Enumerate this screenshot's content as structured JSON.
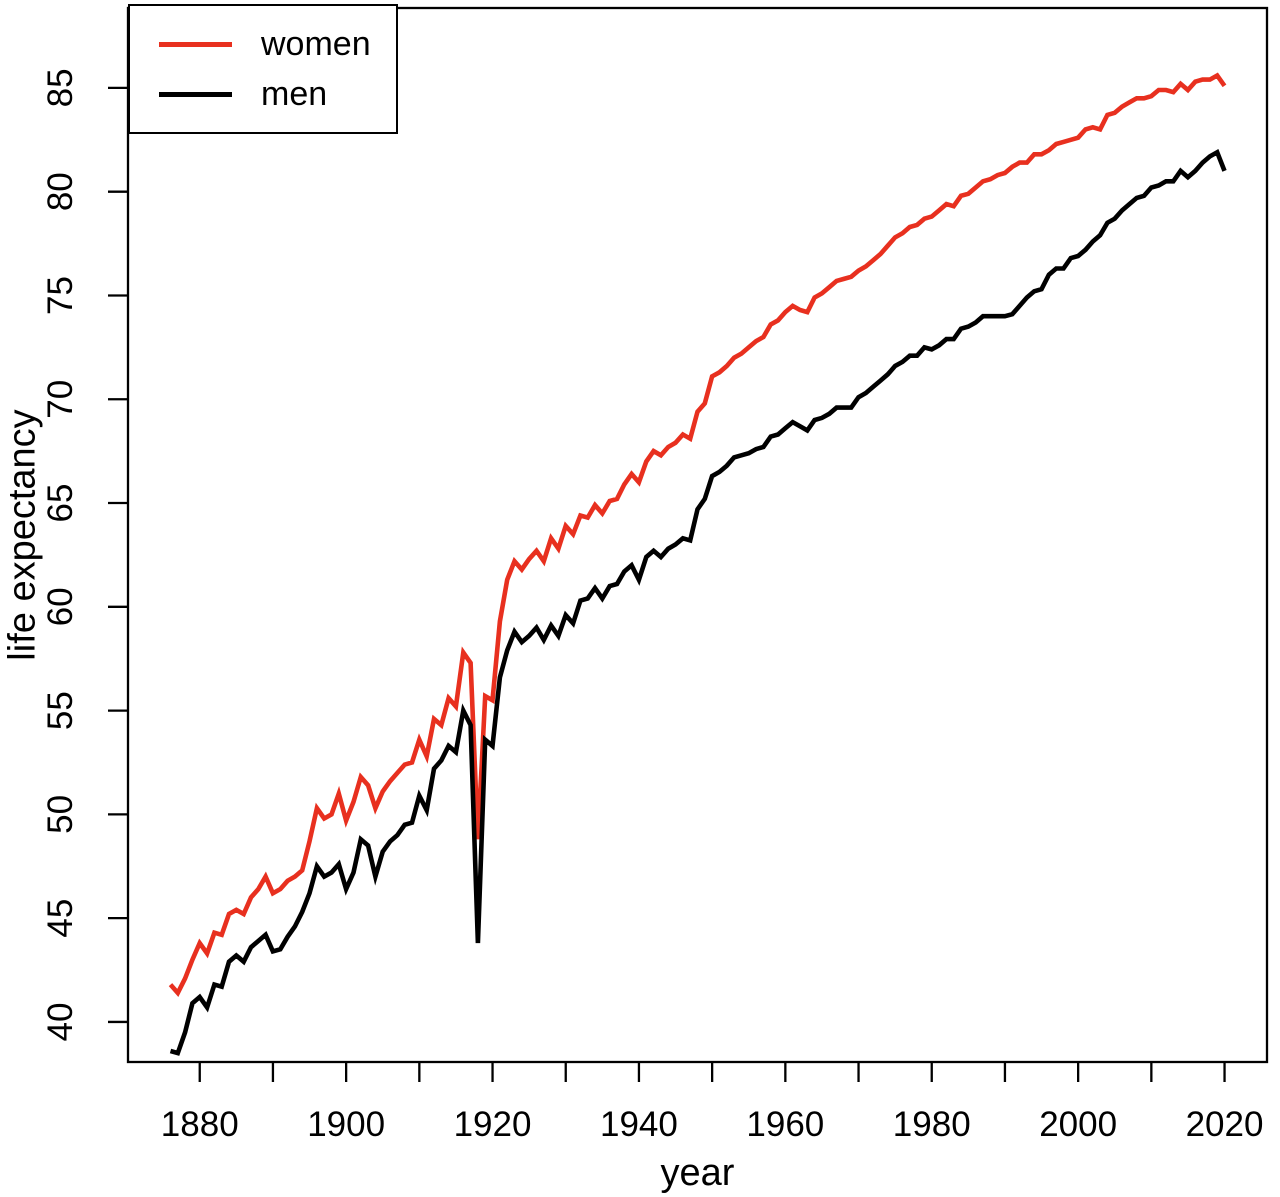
{
  "chart_data": {
    "type": "line",
    "title": "",
    "xlabel": "year",
    "ylabel": "life expectancy",
    "grid": false,
    "legend_position": "top-left",
    "background_color": "#ffffff",
    "axis_color": "#000000",
    "xlim": [
      1870.2,
      2025.8
    ],
    "ylim": [
      38.07,
      88.85
    ],
    "x_ticks": [
      1880,
      1890,
      1900,
      1910,
      1920,
      1930,
      1940,
      1950,
      1960,
      1970,
      1980,
      1990,
      2000,
      2010,
      2020
    ],
    "x_labeled_ticks": [
      1880,
      1900,
      1920,
      1940,
      1960,
      1980,
      2000,
      2020
    ],
    "y_ticks": [
      40,
      45,
      50,
      55,
      60,
      65,
      70,
      75,
      80,
      85
    ],
    "x_start": 1876,
    "x_end": 2020,
    "x_step": 1,
    "series": [
      {
        "name": "women",
        "color": "#e8301f",
        "values": [
          41.8,
          41.4,
          42.1,
          43.0,
          43.8,
          43.3,
          44.3,
          44.2,
          45.2,
          45.4,
          45.2,
          46.0,
          46.4,
          47.0,
          46.2,
          46.4,
          46.8,
          47.0,
          47.3,
          48.7,
          50.3,
          49.8,
          50.0,
          51.0,
          49.7,
          50.6,
          51.8,
          51.4,
          50.3,
          51.1,
          51.6,
          52.0,
          52.4,
          52.5,
          53.6,
          52.8,
          54.6,
          54.3,
          55.6,
          55.2,
          57.8,
          57.3,
          48.8,
          55.7,
          55.5,
          59.3,
          61.3,
          62.2,
          61.8,
          62.3,
          62.7,
          62.2,
          63.3,
          62.8,
          63.9,
          63.5,
          64.4,
          64.3,
          64.9,
          64.5,
          65.1,
          65.2,
          65.9,
          66.4,
          66.0,
          67.0,
          67.5,
          67.3,
          67.7,
          67.9,
          68.3,
          68.1,
          69.4,
          69.8,
          71.1,
          71.3,
          71.6,
          72.0,
          72.2,
          72.5,
          72.8,
          73.0,
          73.6,
          73.8,
          74.2,
          74.5,
          74.3,
          74.2,
          74.9,
          75.1,
          75.4,
          75.7,
          75.8,
          75.9,
          76.2,
          76.4,
          76.7,
          77.0,
          77.4,
          77.8,
          78.0,
          78.3,
          78.4,
          78.7,
          78.8,
          79.1,
          79.4,
          79.3,
          79.8,
          79.9,
          80.2,
          80.5,
          80.6,
          80.8,
          80.9,
          81.2,
          81.4,
          81.4,
          81.8,
          81.8,
          82.0,
          82.3,
          82.4,
          82.5,
          82.6,
          83.0,
          83.1,
          83.0,
          83.7,
          83.8,
          84.1,
          84.3,
          84.5,
          84.5,
          84.6,
          84.9,
          84.9,
          84.8,
          85.2,
          84.9,
          85.3,
          85.4,
          85.4,
          85.6,
          85.1
        ]
      },
      {
        "name": "men",
        "color": "#000000",
        "values": [
          38.6,
          38.5,
          39.5,
          40.9,
          41.2,
          40.7,
          41.8,
          41.7,
          42.9,
          43.2,
          42.9,
          43.6,
          43.9,
          44.2,
          43.4,
          43.5,
          44.1,
          44.6,
          45.3,
          46.2,
          47.5,
          47.0,
          47.2,
          47.6,
          46.4,
          47.2,
          48.8,
          48.5,
          47.0,
          48.2,
          48.7,
          49.0,
          49.5,
          49.6,
          50.9,
          50.2,
          52.2,
          52.6,
          53.3,
          53.0,
          55.0,
          54.3,
          43.8,
          53.6,
          53.3,
          56.6,
          57.9,
          58.8,
          58.3,
          58.6,
          59.0,
          58.4,
          59.1,
          58.6,
          59.6,
          59.2,
          60.3,
          60.4,
          60.9,
          60.4,
          61.0,
          61.1,
          61.7,
          62.0,
          61.3,
          62.4,
          62.7,
          62.4,
          62.8,
          63.0,
          63.3,
          63.2,
          64.7,
          65.2,
          66.3,
          66.5,
          66.8,
          67.2,
          67.3,
          67.4,
          67.6,
          67.7,
          68.2,
          68.3,
          68.6,
          68.9,
          68.7,
          68.5,
          69.0,
          69.1,
          69.3,
          69.6,
          69.6,
          69.6,
          70.1,
          70.3,
          70.6,
          70.9,
          71.2,
          71.6,
          71.8,
          72.1,
          72.1,
          72.5,
          72.4,
          72.6,
          72.9,
          72.9,
          73.4,
          73.5,
          73.7,
          74.0,
          74.0,
          74.0,
          74.0,
          74.1,
          74.5,
          74.9,
          75.2,
          75.3,
          76.0,
          76.3,
          76.3,
          76.8,
          76.9,
          77.2,
          77.6,
          77.9,
          78.5,
          78.7,
          79.1,
          79.4,
          79.7,
          79.8,
          80.2,
          80.3,
          80.5,
          80.5,
          81.0,
          80.7,
          81.0,
          81.4,
          81.7,
          81.9,
          81.0
        ]
      }
    ]
  }
}
